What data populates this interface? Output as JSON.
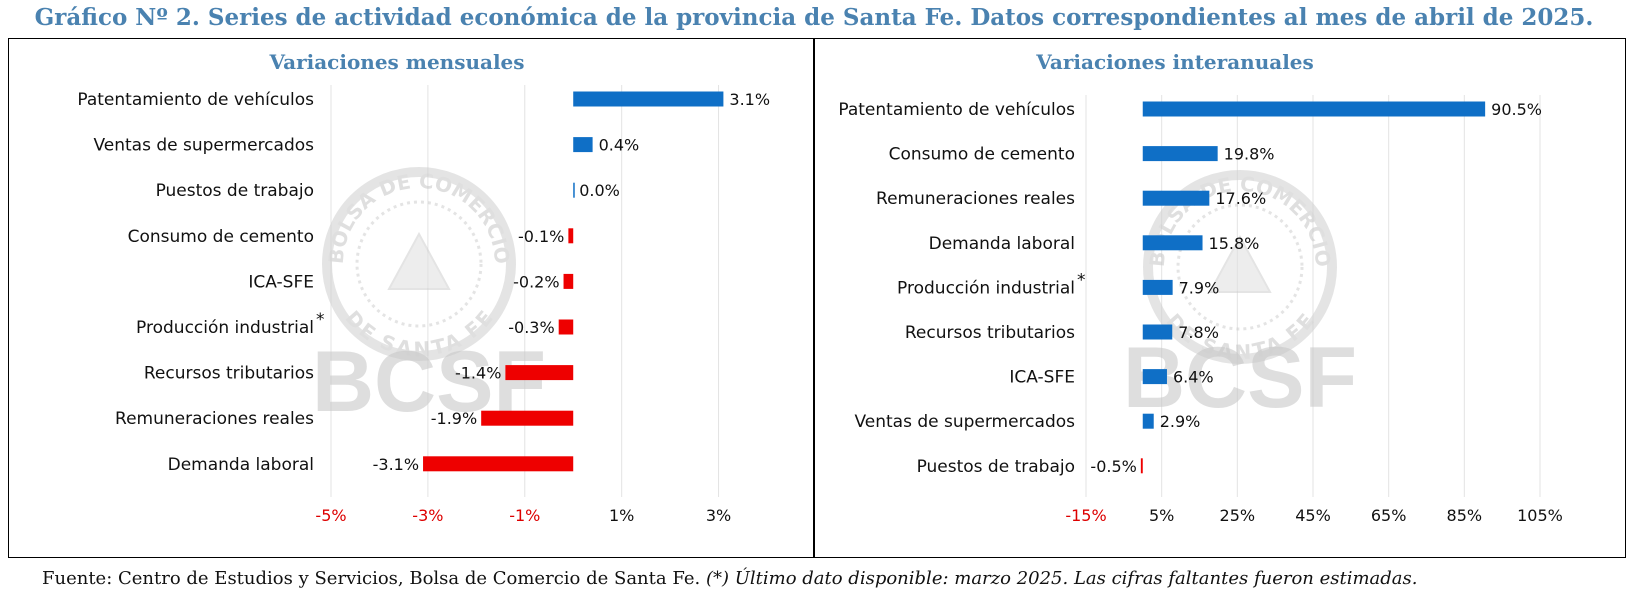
{
  "page": {
    "title": "Gráfico Nº 2. Series de actividad económica de la provincia de Santa Fe. Datos correspondientes al mes de abril de 2025.",
    "watermark_text": "BCSF",
    "seal_text_top": "BOLSA DE COMERCIO",
    "seal_text_bottom": "DE SANTA FE",
    "footer_source": "Fuente: Centro de Estudios y Servicios, Bolsa de Comercio de Santa Fe.",
    "footer_note": "(*) Último dato disponible: marzo 2025. Las cifras faltantes fueron estimadas."
  },
  "colors": {
    "title": "#4a82b0",
    "positive": "#0f6fc6",
    "negative": "#ee0000",
    "negative_tick": "#dd0000",
    "grid": "#e3e3e3",
    "watermark": "#c9c9c9"
  },
  "chart_data": [
    {
      "type": "bar",
      "orientation": "horizontal",
      "title": "Variaciones mensuales",
      "categories": [
        "Patentamiento de vehículos",
        "Ventas de supermercados",
        "Puestos de trabajo ",
        "Consumo de cemento",
        "ICA-SFE",
        "Producción industrial",
        "Recursos tributarios",
        "Remuneraciones reales",
        "Demanda laboral"
      ],
      "asterisk": [
        false,
        false,
        false,
        false,
        false,
        true,
        false,
        false,
        false
      ],
      "values": [
        3.1,
        0.4,
        0.0,
        -0.1,
        -0.2,
        -0.3,
        -1.4,
        -1.9,
        -3.1
      ],
      "value_labels": [
        "3.1%",
        "0.4%",
        "0.0%",
        "-0.1%",
        "-0.2%",
        "-0.3%",
        "-1.4%",
        "-1.9%",
        "-3.1%"
      ],
      "xlim": [
        -5,
        4
      ],
      "xticks": [
        -5,
        -3,
        -1,
        1,
        3
      ],
      "xtick_labels": [
        "-5%",
        "-3%",
        "-1%",
        "1%",
        "3%"
      ],
      "xlabel": "",
      "ylabel": "",
      "grid": true
    },
    {
      "type": "bar",
      "orientation": "horizontal",
      "title": "Variaciones interanuales",
      "categories": [
        "Patentamiento de vehículos",
        "Consumo de cemento",
        "Remuneraciones reales",
        "Demanda laboral",
        "Producción industrial",
        "Recursos tributarios",
        "ICA-SFE",
        "Ventas de supermercados",
        "Puestos de trabajo"
      ],
      "asterisk": [
        false,
        false,
        false,
        false,
        true,
        false,
        false,
        false,
        false
      ],
      "values": [
        90.5,
        19.8,
        17.6,
        15.8,
        7.9,
        7.8,
        6.4,
        2.9,
        -0.5
      ],
      "value_labels": [
        "90.5%",
        "19.8%",
        "17.6%",
        "15.8%",
        "7.9%",
        "7.8%",
        "6.4%",
        "2.9%",
        "-0.5%"
      ],
      "xlim": [
        -15,
        105
      ],
      "xticks": [
        -15,
        5,
        25,
        45,
        65,
        85,
        105
      ],
      "xtick_labels": [
        "-15%",
        "5%",
        "25%",
        "45%",
        "65%",
        "85%",
        "105%"
      ],
      "xlabel": "",
      "ylabel": "",
      "grid": true
    }
  ]
}
